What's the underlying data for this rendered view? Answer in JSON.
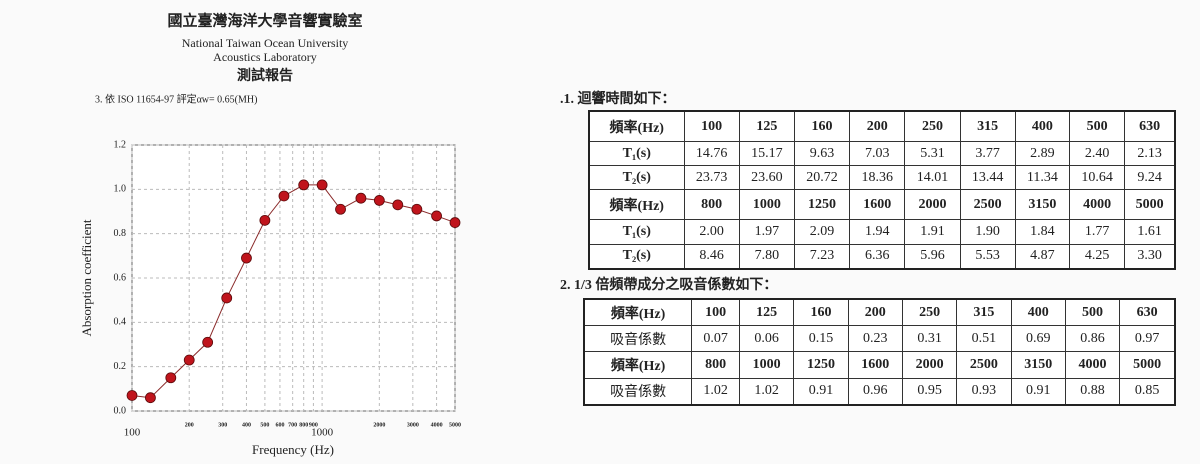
{
  "header": {
    "title_zh": "國立臺灣海洋大學音響實驗室",
    "title_en_1": "National Taiwan Ocean University",
    "title_en_2": "Acoustics Laboratory",
    "report": "測試報告",
    "rating": "3. 依 ISO 11654-97 評定αw= 0.65(MH)"
  },
  "chart_data": {
    "type": "line",
    "xlabel": "Frequency (Hz)",
    "ylabel": "Absorption coefficient",
    "xlog": true,
    "grid": true,
    "x": [
      100,
      125,
      160,
      200,
      250,
      315,
      400,
      500,
      630,
      800,
      1000,
      1250,
      1600,
      2000,
      2500,
      3150,
      4000,
      5000
    ],
    "series": [
      {
        "color": "#c0141c",
        "values": [
          0.07,
          0.06,
          0.15,
          0.23,
          0.31,
          0.51,
          0.69,
          0.86,
          0.97,
          1.02,
          1.02,
          0.91,
          0.96,
          0.95,
          0.93,
          0.91,
          0.88,
          0.85
        ]
      }
    ],
    "xlim": [
      100,
      5000
    ],
    "ylim": [
      0,
      1.2
    ],
    "xticks": [
      100,
      200,
      300,
      400,
      500,
      600,
      700,
      800,
      900,
      1000,
      2000,
      3000,
      4000,
      5000
    ],
    "yticks": [
      {
        "value": 0,
        "label": "0.0"
      },
      0.2,
      0.4,
      0.6,
      0.8,
      {
        "value": 1,
        "label": "1.0"
      },
      1.2
    ]
  },
  "section_1": ".1. 迴響時間如下：",
  "table_1": {
    "rows": [
      [
        "頻率(Hz)",
        "100",
        "125",
        "160",
        "200",
        "250",
        "315",
        "400",
        "500",
        "630"
      ],
      [
        "T₁(s)",
        "14.76",
        "15.17",
        "9.63",
        "7.03",
        "5.31",
        "3.77",
        "2.89",
        "2.40",
        "2.13"
      ],
      [
        "T₂(s)",
        "23.73",
        "23.60",
        "20.72",
        "18.36",
        "14.01",
        "13.44",
        "11.34",
        "10.64",
        "9.24"
      ],
      [
        "頻率(Hz)",
        "800",
        "1000",
        "1250",
        "1600",
        "2000",
        "2500",
        "3150",
        "4000",
        "5000"
      ],
      [
        "T₁(s)",
        "2.00",
        "1.97",
        "2.09",
        "1.94",
        "1.91",
        "1.90",
        "1.84",
        "1.77",
        "1.61"
      ],
      [
        "T₂(s)",
        "8.46",
        "7.80",
        "7.23",
        "6.36",
        "5.96",
        "5.53",
        "4.87",
        "4.25",
        "3.30"
      ]
    ]
  },
  "section_2": "2. 1/3 倍頻帶成分之吸音係數如下：",
  "table_2": {
    "rows": [
      [
        "頻率(Hz)",
        "100",
        "125",
        "160",
        "200",
        "250",
        "315",
        "400",
        "500",
        "630"
      ],
      [
        "吸音係數",
        "0.07",
        "0.06",
        "0.15",
        "0.23",
        "0.31",
        "0.51",
        "0.69",
        "0.86",
        "0.97"
      ],
      [
        "頻率(Hz)",
        "800",
        "1000",
        "1250",
        "1600",
        "2000",
        "2500",
        "3150",
        "4000",
        "5000"
      ],
      [
        "吸音係數",
        "1.02",
        "1.02",
        "0.91",
        "0.96",
        "0.95",
        "0.93",
        "0.91",
        "0.88",
        "0.85"
      ]
    ]
  }
}
